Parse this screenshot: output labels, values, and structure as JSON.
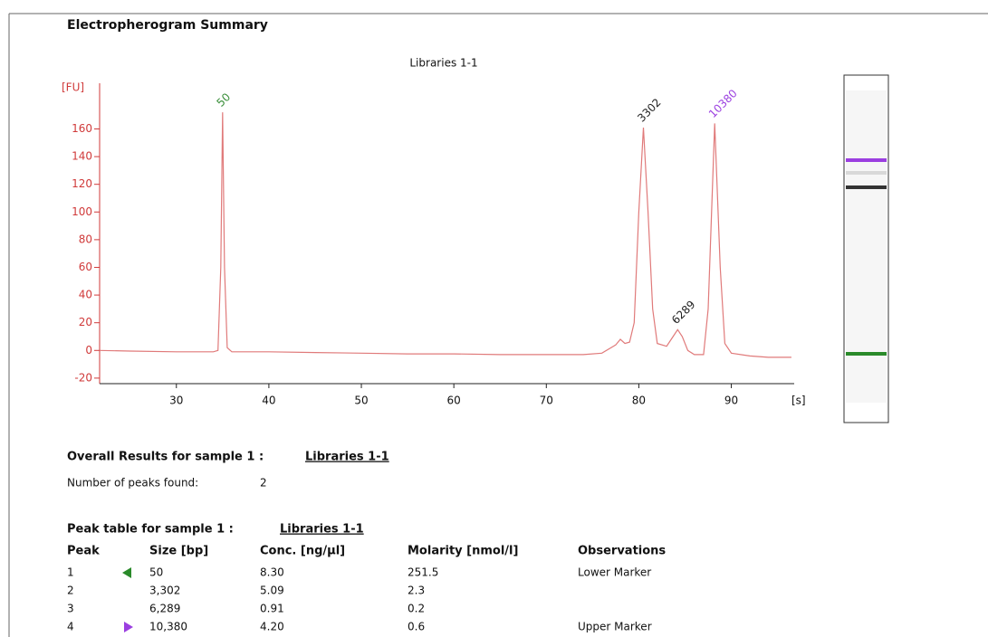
{
  "header": {
    "title": "Electropherogram Summary"
  },
  "chart_data": {
    "type": "line",
    "title": "Libraries 1-1",
    "y_label": "[FU]",
    "x_label": "[s]",
    "xlim": [
      21.7,
      96.8
    ],
    "ylim": [
      -24,
      193
    ],
    "xticks": [
      30,
      40,
      50,
      60,
      70,
      80,
      90
    ],
    "yticks": [
      -20,
      0,
      20,
      40,
      60,
      80,
      100,
      120,
      140,
      160
    ],
    "axis_color": "#d03a3a",
    "x": [
      21.7,
      25,
      30,
      34,
      34.5,
      34.8,
      35.0,
      35.2,
      35.5,
      36,
      40,
      45,
      50,
      55,
      60,
      65,
      70,
      74,
      76,
      77.5,
      78,
      78.5,
      79,
      79.5,
      80,
      80.5,
      81,
      81.5,
      82,
      83,
      83.7,
      84.2,
      84.7,
      85.3,
      86,
      87,
      87.5,
      88.2,
      88.8,
      89.3,
      90,
      92,
      94,
      96.5
    ],
    "series": [
      {
        "color": "#e07a7a",
        "values": [
          0,
          -0.5,
          -1,
          -1,
          0,
          60,
          172,
          60,
          2,
          -1,
          -1,
          -1.5,
          -2,
          -2.5,
          -2.5,
          -3,
          -3,
          -3,
          -2,
          4,
          8,
          5,
          6,
          20,
          100,
          161,
          100,
          30,
          5,
          3,
          10,
          15,
          10,
          0,
          -3,
          -3,
          30,
          164,
          60,
          5,
          -2,
          -4,
          -5,
          -5
        ]
      }
    ],
    "annotations": [
      {
        "text": "50",
        "x": 35.0,
        "y": 172,
        "color": "#3a8f3a"
      },
      {
        "text": "3302",
        "x": 80.5,
        "y": 161,
        "color": "#222222"
      },
      {
        "text": "6289",
        "x": 84.2,
        "y": 15,
        "color": "#222222"
      },
      {
        "text": "10380",
        "x": 88.2,
        "y": 164,
        "color": "#9b3fe0"
      }
    ]
  },
  "overall": {
    "heading": "Overall Results for sample 1 :",
    "sample": "Libraries 1-1",
    "peaks_label": "Number of peaks found:",
    "peaks_value": 2
  },
  "peak_table": {
    "heading": "Peak table for sample 1 :",
    "sample": "Libraries 1-1",
    "columns": [
      "Peak",
      "Size [bp]",
      "Conc. [ng/µl]",
      "Molarity [nmol/l]",
      "Observations"
    ],
    "rows": [
      [
        "1",
        "50",
        "8.30",
        "251.5",
        "Lower Marker"
      ],
      [
        "2",
        "3,302",
        "5.09",
        "2.3"
      ],
      [
        "3",
        "6,289",
        "0.91",
        "0.2"
      ],
      [
        "4",
        "10,380",
        "4.20",
        "0.6",
        "Upper Marker"
      ]
    ]
  }
}
